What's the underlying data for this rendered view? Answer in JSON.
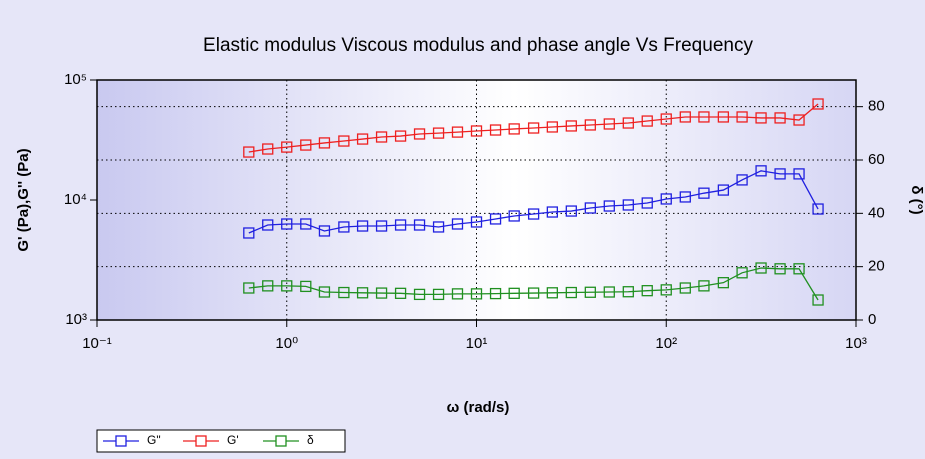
{
  "chart_data": {
    "type": "line",
    "title": "Elastic modulus Viscous modulus and phase angle Vs Frequency",
    "x_label": "ω (rad/s)",
    "y_label": "G' (Pa),G'' (Pa)",
    "y2_label": "δ (°)",
    "xscale": "log",
    "yscale": "log",
    "grid": true,
    "legend": "bottom",
    "x": [
      0.631,
      0.794,
      1,
      1.26,
      1.58,
      2,
      2.51,
      3.16,
      3.98,
      5.01,
      6.31,
      7.94,
      10,
      12.6,
      15.8,
      20,
      25.1,
      31.6,
      39.8,
      50.1,
      63.1,
      79.4,
      100,
      126,
      158,
      200,
      251,
      316,
      398,
      501,
      631
    ],
    "xlim": [
      0.1,
      1000
    ],
    "xticks": [
      {
        "value": 0.1,
        "label": "10⁻¹"
      },
      {
        "value": 1,
        "label": "10⁰"
      },
      {
        "value": 10,
        "label": "10¹"
      },
      {
        "value": 100,
        "label": "10²"
      },
      {
        "value": 1000,
        "label": "10³"
      }
    ],
    "ylim": [
      1000,
      100000
    ],
    "yticks": [
      {
        "value": 1000,
        "label": "10³"
      },
      {
        "value": 10000,
        "label": "10⁴"
      },
      {
        "value": 100000,
        "label": "10⁵"
      }
    ],
    "y2lim": [
      0,
      90
    ],
    "y2ticks": [
      0,
      20,
      40,
      60,
      80
    ],
    "series": [
      {
        "name": "G\"",
        "color": "#2020e0",
        "values": [
          5310,
          6190,
          6310,
          6310,
          5520,
          5960,
          6070,
          6070,
          6190,
          6190,
          5960,
          6310,
          6560,
          6950,
          7360,
          7640,
          7940,
          8090,
          8580,
          8910,
          9090,
          9440,
          10200,
          10600,
          11400,
          12100,
          14700,
          17500,
          16500,
          16500,
          8410
        ]
      },
      {
        "name": "G'",
        "color": "#ee2020",
        "values": [
          25100,
          26600,
          27600,
          28700,
          29900,
          31000,
          32200,
          33500,
          34100,
          35500,
          36100,
          36800,
          37600,
          38300,
          39100,
          39800,
          40600,
          41400,
          42200,
          43000,
          43800,
          45500,
          47300,
          49200,
          49200,
          49200,
          49200,
          48300,
          48300,
          46400,
          63100
        ]
      },
      {
        "name": "δ",
        "color": "#209020",
        "axis": "y2",
        "values": [
          12,
          12.8,
          12.8,
          12.6,
          10.5,
          10.3,
          10.2,
          10.1,
          10,
          9.6,
          9.6,
          9.8,
          9.8,
          9.9,
          10,
          10.1,
          10.2,
          10.3,
          10.4,
          10.5,
          10.6,
          11,
          11.3,
          12,
          12.8,
          14,
          17.7,
          19.5,
          19.2,
          19.2,
          7.5
        ]
      }
    ]
  }
}
